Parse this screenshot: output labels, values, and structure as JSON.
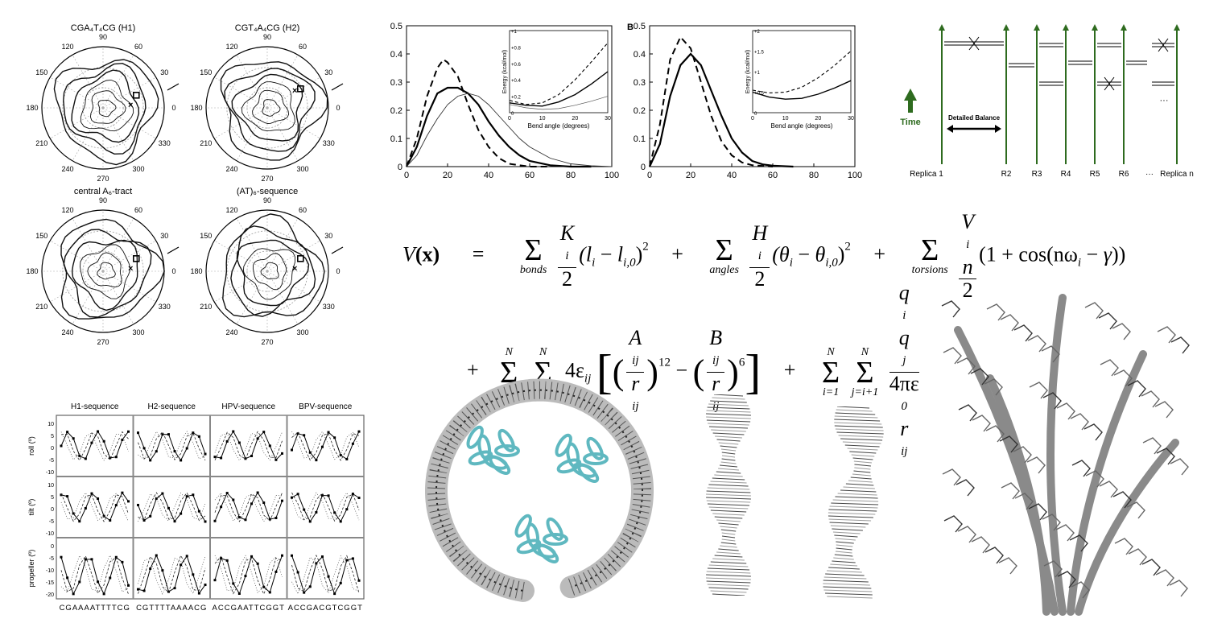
{
  "polar_plots": [
    {
      "title": "CGA₄T₄CG (H1)"
    },
    {
      "title": "CGT₄A₄CG (H2)"
    },
    {
      "title": "central A₆-tract"
    },
    {
      "title": "(AT)₆-sequence"
    }
  ],
  "polar_angles": [
    "90",
    "60",
    "30",
    "0",
    "330",
    "300",
    "270",
    "240",
    "210",
    "180",
    "150",
    "120"
  ],
  "chart_data": [
    {
      "type": "line",
      "title": "",
      "xlabel": "",
      "ylabel": "",
      "xlim": [
        0,
        100
      ],
      "ylim": [
        0,
        0.5
      ],
      "x_ticks": [
        "0",
        "20",
        "40",
        "60",
        "80",
        "100"
      ],
      "y_ticks": [
        "0",
        "0.1",
        "0.2",
        "0.3",
        "0.4",
        "0.5"
      ],
      "series": [
        {
          "style": "dashed",
          "x": [
            0,
            5,
            10,
            15,
            18,
            20,
            25,
            30,
            35,
            40,
            45,
            50,
            55,
            60,
            70
          ],
          "values": [
            0,
            0.1,
            0.25,
            0.35,
            0.38,
            0.37,
            0.32,
            0.22,
            0.13,
            0.07,
            0.03,
            0.01,
            0.005,
            0,
            0
          ]
        },
        {
          "style": "thick",
          "x": [
            0,
            5,
            10,
            15,
            20,
            25,
            30,
            35,
            40,
            45,
            50,
            55,
            60,
            70,
            80,
            90
          ],
          "values": [
            0,
            0.07,
            0.18,
            0.26,
            0.28,
            0.28,
            0.26,
            0.22,
            0.16,
            0.11,
            0.07,
            0.04,
            0.02,
            0.005,
            0,
            0
          ]
        },
        {
          "style": "thin",
          "x": [
            0,
            5,
            10,
            15,
            20,
            25,
            30,
            35,
            40,
            45,
            50,
            55,
            60,
            70,
            80,
            90,
            100
          ],
          "values": [
            0,
            0.04,
            0.11,
            0.17,
            0.22,
            0.25,
            0.26,
            0.25,
            0.22,
            0.18,
            0.14,
            0.1,
            0.07,
            0.03,
            0.01,
            0.003,
            0
          ]
        }
      ],
      "inset": {
        "xlabel": "Bend angle (degrees)",
        "ylabel": "Energy (kcal/mol)",
        "xlim": [
          0,
          30
        ],
        "ylim": [
          0,
          1
        ],
        "x_ticks": [
          "0",
          "10",
          "20",
          "30"
        ],
        "y_ticks": [
          "0",
          "+0.2",
          "+0.4",
          "+0.6",
          "+0.8",
          "+1"
        ],
        "series": [
          {
            "style": "dashed",
            "x": [
              0,
              5,
              10,
              15,
              20,
              25,
              30
            ],
            "values": [
              0.15,
              0.1,
              0.12,
              0.22,
              0.4,
              0.62,
              0.85
            ]
          },
          {
            "style": "thick",
            "x": [
              0,
              5,
              10,
              15,
              20,
              25,
              30
            ],
            "values": [
              0.12,
              0.09,
              0.08,
              0.13,
              0.22,
              0.35,
              0.5
            ]
          },
          {
            "style": "thin",
            "x": [
              0,
              5,
              10,
              15,
              20,
              25,
              30
            ],
            "values": [
              0.1,
              0.06,
              0.04,
              0.05,
              0.09,
              0.14,
              0.2
            ]
          }
        ]
      }
    },
    {
      "type": "line",
      "title": "B",
      "xlabel": "",
      "ylabel": "",
      "xlim": [
        0,
        100
      ],
      "ylim": [
        0,
        0.5
      ],
      "x_ticks": [
        "0",
        "20",
        "40",
        "60",
        "80",
        "100"
      ],
      "y_ticks": [
        "0",
        "0.1",
        "0.2",
        "0.3",
        "0.4",
        "0.5"
      ],
      "series": [
        {
          "style": "dashed",
          "x": [
            0,
            5,
            10,
            15,
            20,
            25,
            30,
            35,
            40,
            45,
            50,
            60
          ],
          "values": [
            0,
            0.15,
            0.38,
            0.46,
            0.42,
            0.3,
            0.18,
            0.09,
            0.04,
            0.015,
            0.005,
            0
          ]
        },
        {
          "style": "thick",
          "x": [
            0,
            5,
            10,
            15,
            20,
            25,
            30,
            35,
            40,
            45,
            50,
            55,
            60,
            70
          ],
          "values": [
            0,
            0.08,
            0.25,
            0.36,
            0.4,
            0.36,
            0.27,
            0.18,
            0.1,
            0.05,
            0.02,
            0.008,
            0.003,
            0
          ]
        }
      ],
      "inset": {
        "xlabel": "Bend angle (degrees)",
        "ylabel": "Energy (kcal/mol)",
        "xlim": [
          0,
          30
        ],
        "ylim": [
          0,
          2
        ],
        "x_ticks": [
          "0",
          "10",
          "20",
          "30"
        ],
        "y_ticks": [
          "0",
          "+0.5",
          "+1",
          "+1.5",
          "+2"
        ],
        "series": [
          {
            "style": "dashed",
            "x": [
              0,
              5,
              10,
              15,
              20,
              25,
              30
            ],
            "values": [
              0.55,
              0.48,
              0.5,
              0.62,
              0.85,
              1.15,
              1.5
            ]
          },
          {
            "style": "thick",
            "x": [
              0,
              5,
              10,
              15,
              20,
              25,
              30
            ],
            "values": [
              0.5,
              0.38,
              0.33,
              0.35,
              0.45,
              0.6,
              0.78
            ]
          }
        ]
      }
    }
  ],
  "replica": {
    "time_label": "Time",
    "balance_label": "Detailed Balance",
    "labels": [
      "Replica 1",
      "R2",
      "R3",
      "R4",
      "R5",
      "R6",
      "···",
      "Replica n"
    ]
  },
  "equation": {
    "lhs_V": "V",
    "lhs_x": "(x)",
    "eq": "=",
    "bonds": "bonds",
    "angles": "angles",
    "torsions": "torsions",
    "K": "K",
    "H": "H",
    "V": "V",
    "n": "n",
    "two": "2",
    "bond_term": "(l",
    "angle_term": "(θ",
    "torsion_term": "(1 + cos(nω",
    "N": "N",
    "i1": "i=1",
    "j1": "j=i+1",
    "four_eps": "4ε",
    "A": "A",
    "B": "B",
    "r": "r",
    "pow12": "12",
    "pow6": "6",
    "qq": "q",
    "coulomb_den": "4πε"
  },
  "helical_plot": {
    "columns": [
      "H1-sequence",
      "H2-sequence",
      "HPV-sequence",
      "BPV-sequence"
    ],
    "rows": [
      {
        "label": "roll (º)",
        "ticks": [
          "10",
          "5",
          "0",
          "-5",
          "-10"
        ]
      },
      {
        "label": "tilt (º)",
        "ticks": [
          "10",
          "5",
          "0",
          "-5",
          "-10"
        ]
      },
      {
        "label": "propeller (º)",
        "ticks": [
          "0",
          "-5",
          "-10",
          "-15",
          "-20"
        ]
      }
    ],
    "sequences": [
      "CGAAAATTTTCG",
      "CGTTTTAAAACG",
      "ACCGAATTCGGT",
      "ACCGACGTCGGT"
    ]
  },
  "colors": {
    "green": "#2e6b1f",
    "cyan": "#5fb8c0",
    "grey": "#8a8a8a"
  }
}
